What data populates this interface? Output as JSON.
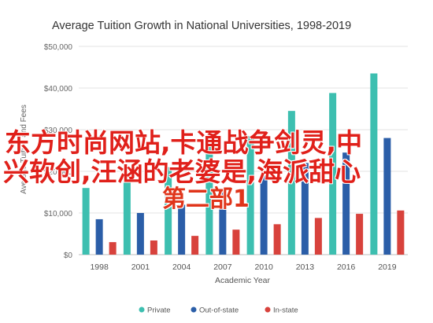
{
  "chart_data": {
    "type": "bar",
    "title": "Average Tuition Growth in National Universities, 1998-2019",
    "xlabel": "Academic Year",
    "ylabel": "Average Tuition and Fees",
    "categories": [
      "1998",
      "2001",
      "2004",
      "2007",
      "2010",
      "2013",
      "2016",
      "2019"
    ],
    "series": [
      {
        "name": "Private",
        "color": "#3dbfb0",
        "values": [
          16000,
          18500,
          21000,
          26000,
          28500,
          34500,
          38800,
          43500
        ]
      },
      {
        "name": "Out-of-state",
        "color": "#2b5ea8",
        "values": [
          8500,
          10000,
          12000,
          15500,
          19000,
          22000,
          24500,
          28000
        ]
      },
      {
        "name": "In-state",
        "color": "#d8423c",
        "values": [
          3000,
          3400,
          4500,
          6000,
          7300,
          8800,
          9800,
          10600
        ]
      }
    ],
    "ylim": [
      0,
      50000
    ],
    "yticks": [
      0,
      10000,
      20000,
      30000,
      40000,
      50000
    ],
    "ytick_labels": [
      "$0",
      "$10,000",
      "$20,000",
      "$30,000",
      "$40,000",
      "$50,000"
    ],
    "grid": true,
    "legend_position": "bottom"
  },
  "overlay_text": {
    "line1": "东方时尚网站,卡通战争剑灵,中",
    "line2": "兴软创,汪涵的老婆是,海派甜心",
    "line3": "第二部1"
  }
}
